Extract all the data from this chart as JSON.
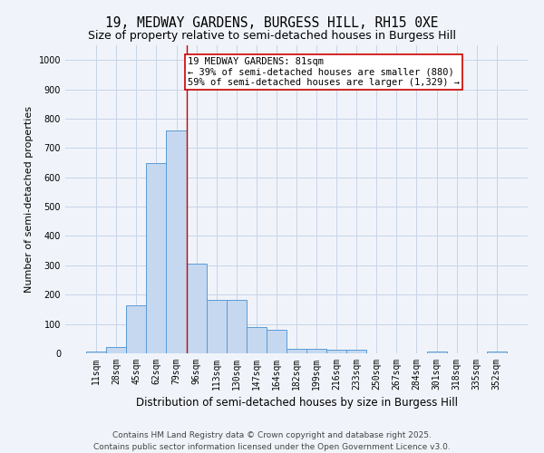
{
  "title_line1": "19, MEDWAY GARDENS, BURGESS HILL, RH15 0XE",
  "title_line2": "Size of property relative to semi-detached houses in Burgess Hill",
  "xlabel": "Distribution of semi-detached houses by size in Burgess Hill",
  "ylabel": "Number of semi-detached properties",
  "categories": [
    "11sqm",
    "28sqm",
    "45sqm",
    "62sqm",
    "79sqm",
    "96sqm",
    "113sqm",
    "130sqm",
    "147sqm",
    "164sqm",
    "182sqm",
    "199sqm",
    "216sqm",
    "233sqm",
    "250sqm",
    "267sqm",
    "284sqm",
    "301sqm",
    "318sqm",
    "335sqm",
    "352sqm"
  ],
  "values": [
    5,
    22,
    165,
    648,
    760,
    305,
    183,
    183,
    90,
    80,
    14,
    14,
    11,
    11,
    0,
    0,
    0,
    5,
    0,
    0,
    5
  ],
  "bar_color": "#c5d8f0",
  "bar_edge_color": "#5b9bd5",
  "annotation_label": "19 MEDWAY GARDENS: 81sqm",
  "annotation_line2": "← 39% of semi-detached houses are smaller (880)",
  "annotation_line3": "59% of semi-detached houses are larger (1,329) →",
  "annotation_box_color": "#ffffff",
  "annotation_box_edge_color": "#cc0000",
  "vline_color": "#cc0000",
  "vline_x": 4.5,
  "ylim": [
    0,
    1050
  ],
  "yticks": [
    0,
    100,
    200,
    300,
    400,
    500,
    600,
    700,
    800,
    900,
    1000
  ],
  "background_color": "#f0f4fa",
  "plot_bg_color": "#f0f4fa",
  "grid_color": "#c8d4e8",
  "footer_line1": "Contains HM Land Registry data © Crown copyright and database right 2025.",
  "footer_line2": "Contains public sector information licensed under the Open Government Licence v3.0.",
  "title_fontsize": 10.5,
  "subtitle_fontsize": 9,
  "ylabel_fontsize": 8,
  "xlabel_fontsize": 8.5,
  "tick_fontsize": 7,
  "annotation_fontsize": 7.5,
  "footer_fontsize": 6.5
}
